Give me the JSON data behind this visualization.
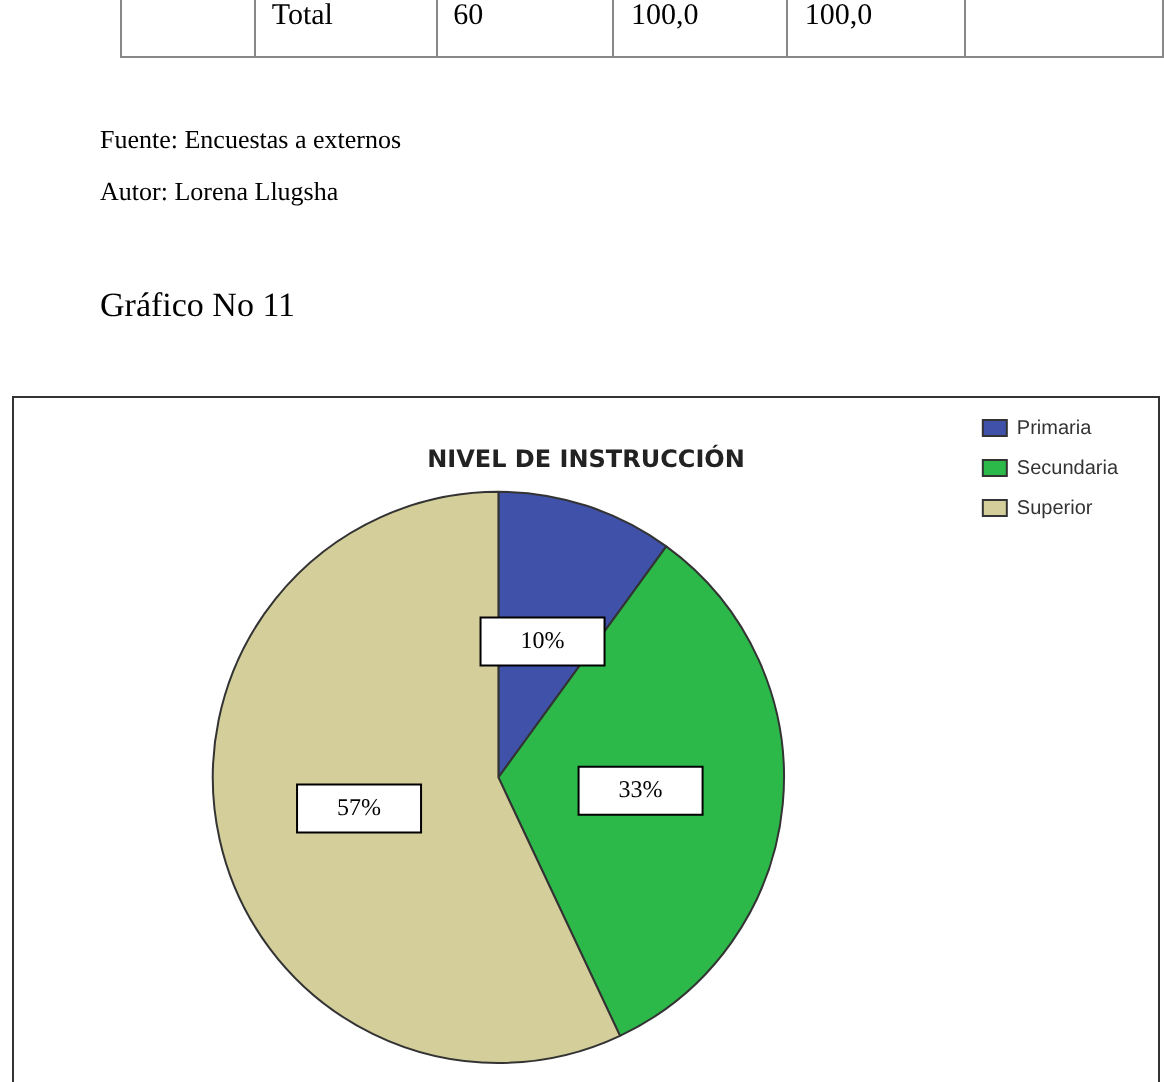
{
  "chart_data": {
    "type": "pie",
    "title": "NIVEL DE INSTRUCCIÓN",
    "categories": [
      "Primaria",
      "Secundaria",
      "Superior"
    ],
    "values": [
      10,
      33,
      57
    ],
    "colors": [
      "#3f51a8",
      "#2db84a",
      "#d4cf9a"
    ],
    "value_labels": [
      "10%",
      "33%",
      "57%"
    ],
    "legend": "top right",
    "annotations": [
      "Total",
      "60",
      "100,0",
      "100,0",
      "Fuente: Encuestas a externos",
      "Autor: Lorena Llugsha",
      "Gráfico No 11"
    ]
  }
}
